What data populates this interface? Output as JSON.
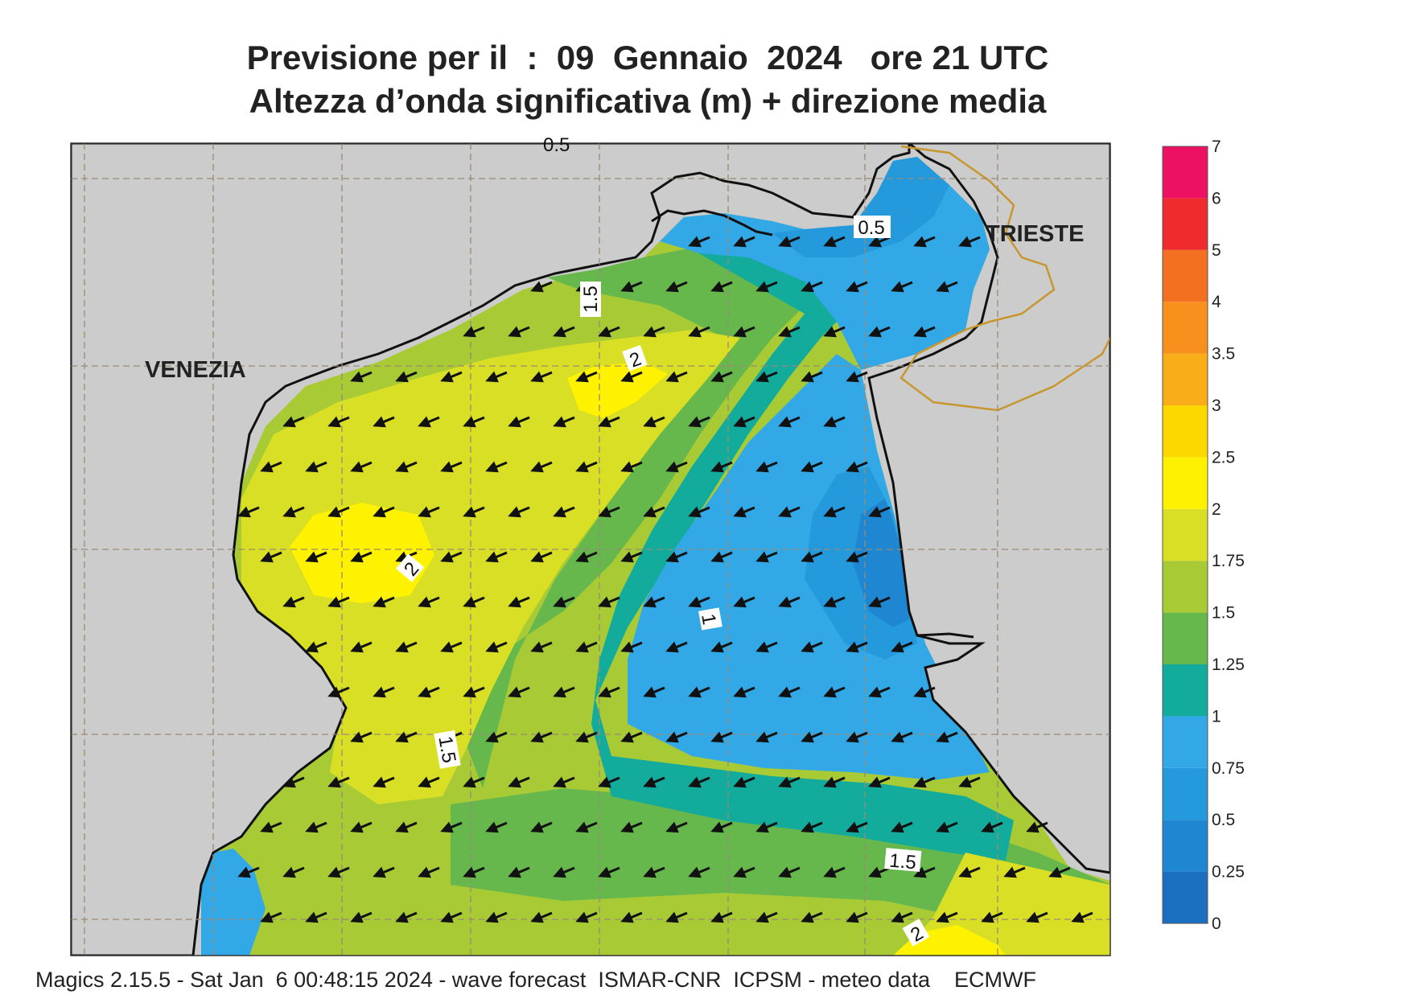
{
  "title": {
    "line1": "Previsione per il  :  09  Gennaio  2024   ore 21 UTC",
    "line2": "Altezza d’onda significativa (m) + direzione media"
  },
  "colors": {
    "land": "#cccccc",
    "coast": "#111111",
    "border": "#c8962e",
    "grid": "#9a8a74",
    "arrow": "#111111"
  },
  "colorbar": {
    "levels": [
      "0",
      "0.25",
      "0.5",
      "0.75",
      "1",
      "1.25",
      "1.5",
      "1.75",
      "2",
      "2.5",
      "3",
      "3.5",
      "4",
      "5",
      "6",
      "7"
    ],
    "colors": [
      "#1a6fbf",
      "#1f86d1",
      "#2499dc",
      "#32a8e6",
      "#12ab9c",
      "#66b84c",
      "#a8cb35",
      "#d8df24",
      "#fef200",
      "#fdd700",
      "#f9ad19",
      "#f7901d",
      "#f37021",
      "#ef2b2d",
      "#ec1163"
    ]
  },
  "cities": [
    {
      "name": "VENEZIA",
      "key": "venezia"
    },
    {
      "name": "TRIESTE",
      "key": "trieste"
    }
  ],
  "contour_labels": [
    {
      "text": "0.5",
      "key": "c05"
    },
    {
      "text": "1.5",
      "key": "c15a"
    },
    {
      "text": "2",
      "key": "c2a"
    },
    {
      "text": "2",
      "key": "c2b"
    },
    {
      "text": "1",
      "key": "c1"
    },
    {
      "text": "1.5",
      "key": "c15b"
    },
    {
      "text": "1.5",
      "key": "c15c"
    },
    {
      "text": "2",
      "key": "c2c"
    }
  ],
  "top_cutoff_label": "0.5",
  "wave_field": {
    "mean_direction": "toward south-west (waves from north-east)",
    "height_range_m": [
      0.5,
      2
    ]
  },
  "footer": "Magics 2.15.5 - Sat Jan  6 00:48:15 2024 - wave forecast  ISMAR-CNR  ICPSM - meteo data    ECMWF"
}
